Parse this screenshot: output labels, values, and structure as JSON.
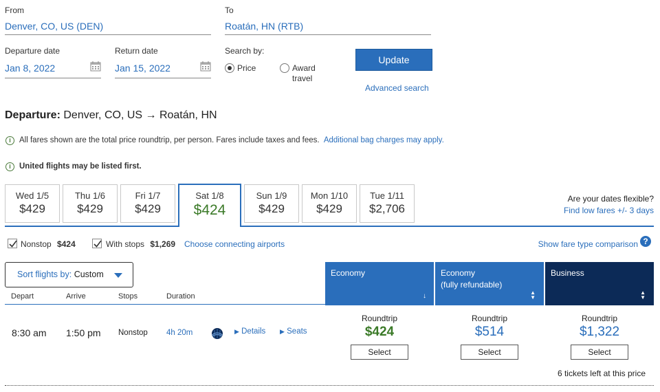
{
  "search": {
    "from_label": "From",
    "from_value": "Denver, CO, US (DEN)",
    "to_label": "To",
    "to_value": "Roatán, HN (RTB)",
    "departure_label": "Departure date",
    "departure_value": "Jan 8, 2022",
    "return_label": "Return date",
    "return_value": "Jan 15, 2022",
    "search_by_label": "Search by:",
    "price_option": "Price",
    "award_option_line1": "Award",
    "award_option_line2": "travel",
    "selected_option": "Price",
    "update_button": "Update",
    "advanced_search": "Advanced search"
  },
  "departure": {
    "prefix": "Departure:",
    "route": "Denver, CO, US → Roatán, HN"
  },
  "notices": {
    "fares_text": "All fares shown are the total price roundtrip, per person. Fares include taxes and fees.",
    "bag_link": "Additional bag charges may apply.",
    "united_text": "United flights may be listed first."
  },
  "date_tabs": [
    {
      "day": "Wed 1/5",
      "price": "$429"
    },
    {
      "day": "Thu 1/6",
      "price": "$429"
    },
    {
      "day": "Fri 1/7",
      "price": "$429"
    },
    {
      "day": "Sat 1/8",
      "price": "$424",
      "active": true
    },
    {
      "day": "Sun 1/9",
      "price": "$429"
    },
    {
      "day": "Mon 1/10",
      "price": "$429"
    },
    {
      "day": "Tue 1/11",
      "price": "$2,706"
    }
  ],
  "flexible": {
    "question": "Are your dates flexible?",
    "link": "Find low fares +/- 3 days"
  },
  "filters": {
    "nonstop_label": "Nonstop",
    "nonstop_price": "$424",
    "nonstop_checked": true,
    "withstops_label": "With stops",
    "withstops_price": "$1,269",
    "withstops_checked": true,
    "connecting_link": "Choose connecting airports",
    "fare_compare_link": "Show fare type comparison"
  },
  "sort": {
    "label": "Sort flights by:",
    "value": "Custom"
  },
  "columns": {
    "depart": "Depart",
    "arrive": "Arrive",
    "stops": "Stops",
    "duration": "Duration"
  },
  "cabins": [
    {
      "name": "Economy",
      "sub": "",
      "color": "#2a6ebb"
    },
    {
      "name": "Economy",
      "sub": "(fully refundable)",
      "color": "#2a6ebb"
    },
    {
      "name": "Business",
      "sub": "",
      "color": "#0c2a57"
    }
  ],
  "flight": {
    "depart": "8:30 am",
    "arrive": "1:50 pm",
    "stops": "Nonstop",
    "duration": "4h 20m",
    "details_link": "Details",
    "seats_link": "Seats",
    "fares": [
      {
        "type": "Roundtrip",
        "price": "$424",
        "color": "#3b7a28",
        "button": "Select"
      },
      {
        "type": "Roundtrip",
        "price": "$514",
        "color": "#2a6ebb",
        "button": "Select"
      },
      {
        "type": "Roundtrip",
        "price": "$1,322",
        "color": "#2a6ebb",
        "button": "Select"
      }
    ],
    "tickets_left": "6 tickets left at this price"
  },
  "colors": {
    "accent": "#2a6ebb",
    "best_price": "#3b7a28",
    "business": "#0c2a57"
  }
}
